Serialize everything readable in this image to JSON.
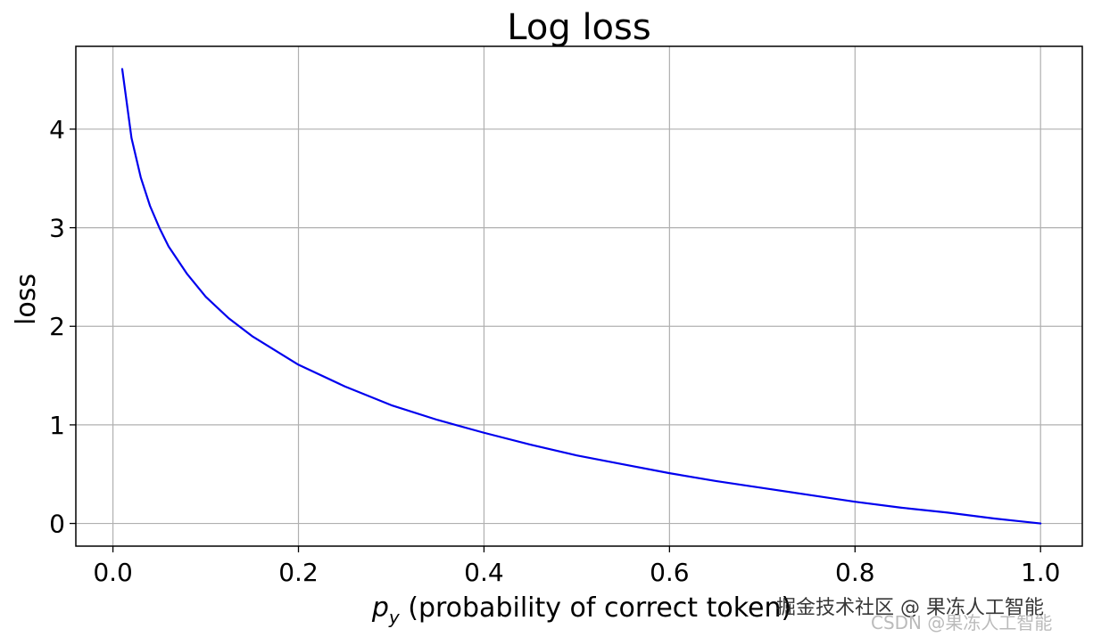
{
  "chart_data": {
    "type": "line",
    "title": "Log loss",
    "xlabel": "p",
    "xlabel_subscript": "y",
    "xlabel_suffix": " (probability of correct token)",
    "ylabel": "loss",
    "xlim": [
      -0.04,
      1.045
    ],
    "ylim": [
      -0.23,
      4.84
    ],
    "xticks": [
      0.0,
      0.2,
      0.4,
      0.6,
      0.8,
      1.0
    ],
    "xtick_labels": [
      "0.0",
      "0.2",
      "0.4",
      "0.6",
      "0.8",
      "1.0"
    ],
    "yticks": [
      0,
      1,
      2,
      3,
      4
    ],
    "ytick_labels": [
      "0",
      "1",
      "2",
      "3",
      "4"
    ],
    "grid": true,
    "series": [
      {
        "color": "#0000ee",
        "x": [
          0.01,
          0.02,
          0.03,
          0.04,
          0.05,
          0.06,
          0.08,
          0.1,
          0.125,
          0.15,
          0.2,
          0.25,
          0.3,
          0.35,
          0.4,
          0.45,
          0.5,
          0.55,
          0.6,
          0.65,
          0.7,
          0.75,
          0.8,
          0.85,
          0.9,
          0.95,
          1.0
        ],
        "y": [
          4.61,
          3.91,
          3.51,
          3.22,
          3.0,
          2.81,
          2.53,
          2.3,
          2.08,
          1.9,
          1.61,
          1.39,
          1.2,
          1.05,
          0.92,
          0.8,
          0.69,
          0.6,
          0.51,
          0.43,
          0.36,
          0.29,
          0.22,
          0.16,
          0.11,
          0.05,
          0.0
        ]
      }
    ]
  },
  "watermarks": {
    "primary": "掘金技术社区 @ 果冻人工智能",
    "secondary": "CSDN @果冻人工智能"
  }
}
